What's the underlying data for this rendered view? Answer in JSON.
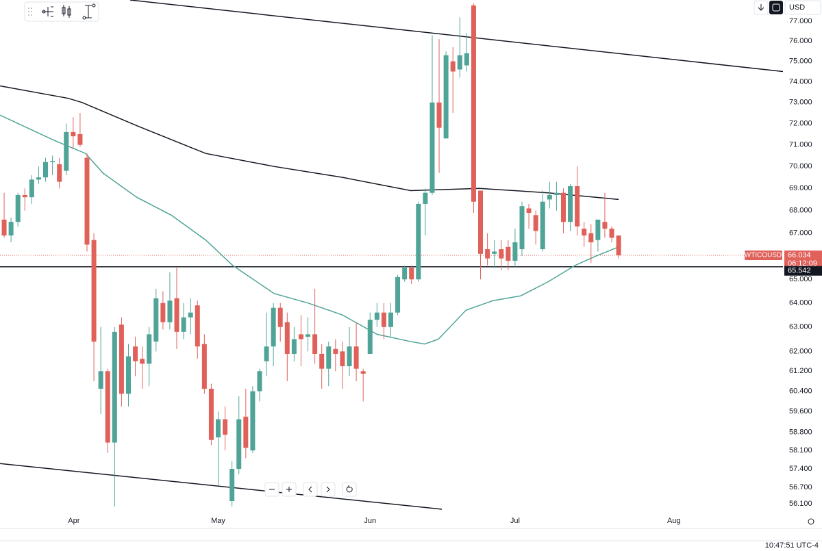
{
  "chart_data": {
    "type": "candlestick",
    "symbol": "WTICOUSD",
    "currency": "USD",
    "last_price": 66.034,
    "countdown": "06:12:09",
    "level": 65.542,
    "time": "10:47:51 UTC-4",
    "log_scale": true,
    "up_color": "#4fa397",
    "down_color": "#e0605a",
    "ylim": [
      55.25,
      78.08
    ],
    "yticks": [
      {
        "value": 77,
        "label": "77.000"
      },
      {
        "value": 76,
        "label": "76.000"
      },
      {
        "value": 75,
        "label": "75.000"
      },
      {
        "value": 74,
        "label": "74.000"
      },
      {
        "value": 73,
        "label": "73.000"
      },
      {
        "value": 72,
        "label": "72.000"
      },
      {
        "value": 71,
        "label": "71.000"
      },
      {
        "value": 70,
        "label": "70.000"
      },
      {
        "value": 69,
        "label": "69.000"
      },
      {
        "value": 68,
        "label": "68.000"
      },
      {
        "value": 67,
        "label": "67.000"
      },
      {
        "value": 65,
        "label": "65.000"
      },
      {
        "value": 64,
        "label": "64.000"
      },
      {
        "value": 63,
        "label": "63.000"
      },
      {
        "value": 62,
        "label": "62.000"
      },
      {
        "value": 61.2,
        "label": "61.200"
      },
      {
        "value": 60.4,
        "label": "60.400"
      },
      {
        "value": 59.6,
        "label": "59.600"
      },
      {
        "value": 58.8,
        "label": "58.800"
      },
      {
        "value": 58.1,
        "label": "58.100"
      },
      {
        "value": 57.4,
        "label": "57.400"
      },
      {
        "value": 56.7,
        "label": "56.700"
      },
      {
        "value": 56.1,
        "label": "56.100"
      }
    ],
    "xlim": [
      -0.6,
      112.8
    ],
    "xticks": [
      {
        "value": 10.1,
        "label": "Apr"
      },
      {
        "value": 31,
        "label": "May"
      },
      {
        "value": 53,
        "label": "Jun"
      },
      {
        "value": 74,
        "label": "Jul"
      },
      {
        "value": 97,
        "label": "Aug"
      }
    ],
    "candles": {
      "open": [
        67.6,
        66.9,
        67.5,
        68.7,
        68.6,
        69.4,
        69.5,
        70.2,
        70.1,
        69.8,
        71.6,
        71.5,
        70.4,
        66.7,
        60.5,
        61.2,
        58.4,
        63.1,
        60.3,
        62.2,
        61.7,
        61.5,
        62.4,
        64.0,
        63.2,
        64.2,
        62.8,
        63.4,
        63.9,
        62.3,
        60.5,
        58.6,
        59.3,
        56.2,
        57.4,
        59.4,
        58.1,
        60.4,
        61.6,
        62.2,
        63.8,
        63.2,
        61.9,
        62.7,
        62.6,
        62.7,
        61.9,
        61.3,
        62.1,
        62.0,
        61.4,
        62.2,
        61.2,
        61.9,
        63.3,
        63.6,
        63.0,
        63.6,
        65.0,
        65.5,
        65.0,
        68.3,
        68.8,
        73.0,
        71.3,
        75.0,
        74.6,
        74.8,
        77.8,
        68.9,
        66.3,
        66.1,
        66.3,
        66.4,
        65.8,
        66.3,
        68.1,
        67.8,
        66.3,
        68.5,
        68.7,
        68.8,
        67.5,
        69.1,
        67.2,
        67.0,
        66.7,
        67.5,
        67.2,
        66.9
      ],
      "high": [
        68.8,
        67.7,
        68.8,
        69.0,
        69.6,
        70.0,
        70.4,
        70.5,
        70.4,
        72.0,
        72.3,
        72.5,
        70.6,
        67.0,
        63.0,
        61.3,
        63.0,
        63.4,
        62.3,
        62.6,
        62.2,
        63.0,
        64.6,
        64.5,
        65.3,
        65.5,
        64.0,
        64.2,
        64.1,
        62.7,
        60.7,
        59.6,
        59.8,
        57.7,
        60.2,
        60.5,
        60.6,
        61.3,
        63.6,
        64.0,
        64.0,
        63.6,
        63.0,
        63.5,
        63.4,
        64.6,
        62.3,
        62.4,
        62.5,
        62.4,
        63.0,
        63.2,
        61.3,
        63.6,
        64.0,
        64.0,
        64.0,
        65.2,
        65.6,
        65.6,
        68.4,
        69.0,
        76.3,
        76.1,
        75.5,
        75.7,
        77.2,
        76.4,
        77.9,
        68.9,
        67.0,
        66.7,
        66.7,
        66.7,
        67.2,
        68.4,
        68.3,
        68.0,
        68.9,
        69.3,
        69.3,
        69.0,
        69.2,
        70.0,
        67.5,
        67.4,
        67.6,
        68.8,
        67.3,
        66.9
      ],
      "low": [
        66.8,
        66.6,
        67.3,
        68.0,
        68.3,
        69.2,
        69.3,
        69.6,
        69.0,
        69.6,
        70.8,
        70.9,
        66.2,
        60.8,
        59.5,
        58.0,
        56.0,
        59.8,
        59.8,
        61.0,
        60.5,
        60.6,
        62.0,
        62.9,
        62.9,
        62.1,
        62.5,
        62.7,
        61.7,
        60.3,
        58.3,
        56.8,
        58.1,
        56.0,
        57.2,
        57.8,
        58.0,
        60.0,
        61.0,
        61.4,
        62.4,
        60.8,
        61.6,
        61.4,
        62.0,
        61.5,
        60.5,
        60.6,
        61.2,
        60.5,
        61.0,
        60.8,
        60.0,
        61.9,
        63.0,
        62.5,
        62.6,
        63.5,
        64.9,
        64.8,
        64.9,
        66.9,
        68.7,
        69.7,
        71.3,
        72.5,
        74.2,
        74.5,
        67.9,
        65.0,
        65.6,
        65.5,
        65.4,
        65.4,
        65.5,
        66.0,
        67.2,
        66.5,
        66.2,
        68.1,
        68.0,
        67.0,
        67.1,
        66.9,
        66.4,
        65.7,
        66.2,
        66.8,
        66.6,
        65.9
      ],
      "close": [
        66.9,
        67.5,
        68.7,
        68.6,
        69.4,
        69.5,
        70.2,
        70.25,
        69.3,
        71.6,
        71.4,
        71.0,
        66.5,
        62.4,
        61.2,
        58.4,
        62.8,
        60.3,
        61.8,
        61.6,
        61.5,
        62.7,
        64.2,
        63.2,
        64.1,
        62.8,
        63.4,
        63.6,
        62.2,
        60.5,
        58.5,
        59.3,
        58.7,
        57.4,
        59.3,
        58.2,
        60.4,
        61.2,
        62.2,
        63.8,
        63.0,
        61.9,
        62.5,
        62.5,
        62.7,
        61.9,
        61.3,
        62.2,
        61.9,
        61.4,
        62.2,
        61.3,
        61.1,
        63.3,
        63.6,
        63.0,
        63.6,
        65.1,
        65.5,
        65.0,
        68.3,
        68.8,
        73.0,
        71.8,
        75.3,
        74.5,
        75.3,
        75.4,
        68.4,
        66.1,
        65.9,
        66.2,
        65.9,
        65.8,
        66.6,
        68.2,
        67.9,
        67.1,
        68.4,
        68.7,
        68.8,
        67.5,
        69.1,
        67.3,
        66.9,
        66.6,
        67.6,
        67.2,
        66.8,
        66.034
      ]
    },
    "lines": [
      {
        "color": "#4fa397",
        "x": [
          -0.6,
          7.3,
          11.8,
          14.3,
          19.2,
          24.2,
          29.2,
          33.1,
          39.1,
          44,
          49,
          54,
          58.9,
          60.9,
          62.9,
          66.9,
          70.8,
          74.8,
          78.8,
          82.7,
          85.7,
          89
        ],
        "values": [
          72.4,
          71.2,
          70.6,
          69.7,
          68.6,
          67.8,
          66.7,
          65.6,
          64.4,
          64.0,
          63.5,
          62.7,
          62.4,
          62.3,
          62.5,
          63.7,
          64.1,
          64.3,
          64.9,
          65.6,
          66.0,
          66.4
        ]
      },
      {
        "color": "#131722",
        "x": [
          -0.6,
          9.3,
          11.3,
          19.2,
          29.2,
          39.1,
          49,
          58.9,
          68.8,
          78.8,
          89
        ],
        "values": [
          73.8,
          73.2,
          73.0,
          71.9,
          70.6,
          70.0,
          69.5,
          68.9,
          69.0,
          68.8,
          68.5
        ]
      }
    ],
    "trend_lines": [
      {
        "color": "#131722",
        "x": [
          18.25,
          112.8
        ],
        "values": [
          78.08,
          74.5
        ]
      },
      {
        "color": "#131722",
        "x": [
          -0.6,
          63.4
        ],
        "values": [
          57.6,
          55.9
        ]
      }
    ]
  }
}
